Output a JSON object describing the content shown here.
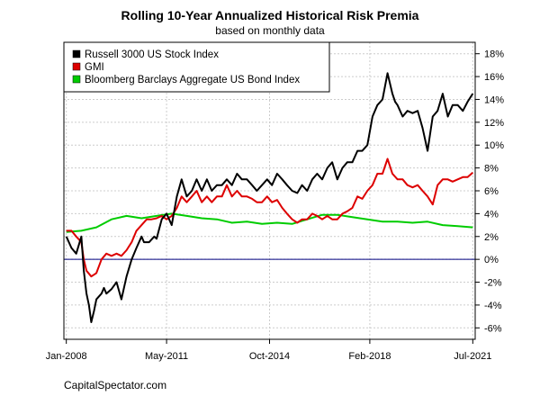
{
  "chart_data": {
    "type": "line",
    "title": "Rolling 10-Year Annualized Historical Risk Premia",
    "subtitle": "based on monthly data",
    "source": "CapitalSpectator.com",
    "xlabel": "",
    "ylabel": "",
    "x_ticks": [
      "Jan-2008",
      "May-2011",
      "Oct-2014",
      "Feb-2018",
      "Jul-2021"
    ],
    "y_ticks": [
      "-6%",
      "-4%",
      "-2%",
      "0%",
      "2%",
      "4%",
      "6%",
      "8%",
      "10%",
      "12%",
      "14%",
      "16%",
      "18%"
    ],
    "ylim": [
      -7,
      19
    ],
    "xlim": [
      2007.92,
      2021.58
    ],
    "grid": true,
    "legend_position": "top-left",
    "reference_line": 0,
    "series": [
      {
        "name": "Russell 3000 US Stock Index",
        "color": "#000000",
        "x": [
          2008.0,
          2008.17,
          2008.33,
          2008.5,
          2008.58,
          2008.67,
          2008.75,
          2008.83,
          2008.92,
          2009.0,
          2009.17,
          2009.25,
          2009.33,
          2009.5,
          2009.67,
          2009.83,
          2010.0,
          2010.17,
          2010.33,
          2010.5,
          2010.58,
          2010.75,
          2010.92,
          2011.0,
          2011.17,
          2011.33,
          2011.5,
          2011.67,
          2011.83,
          2012.0,
          2012.17,
          2012.33,
          2012.5,
          2012.67,
          2012.83,
          2013.0,
          2013.17,
          2013.33,
          2013.5,
          2013.67,
          2013.83,
          2014.0,
          2014.17,
          2014.33,
          2014.5,
          2014.67,
          2014.83,
          2015.0,
          2015.17,
          2015.33,
          2015.5,
          2015.67,
          2015.83,
          2016.0,
          2016.17,
          2016.33,
          2016.5,
          2016.67,
          2016.83,
          2017.0,
          2017.17,
          2017.33,
          2017.5,
          2017.67,
          2017.83,
          2018.0,
          2018.17,
          2018.33,
          2018.5,
          2018.67,
          2018.83,
          2018.92,
          2019.0,
          2019.17,
          2019.33,
          2019.5,
          2019.67,
          2019.83,
          2020.0,
          2020.17,
          2020.33,
          2020.5,
          2020.67,
          2020.83,
          2021.0,
          2021.17,
          2021.33,
          2021.5
        ],
        "values": [
          2.0,
          1.0,
          0.5,
          2.0,
          -1.0,
          -3.0,
          -4.0,
          -5.5,
          -4.5,
          -3.5,
          -3.0,
          -2.5,
          -3.0,
          -2.6,
          -2.0,
          -3.5,
          -1.5,
          0.0,
          1.0,
          2.0,
          1.5,
          1.5,
          2.0,
          1.8,
          3.5,
          4.0,
          3.0,
          5.5,
          7.0,
          5.5,
          6.0,
          7.0,
          6.0,
          7.0,
          6.0,
          6.5,
          6.5,
          7.0,
          6.5,
          7.5,
          7.0,
          7.0,
          6.5,
          6.0,
          6.5,
          7.0,
          6.5,
          7.5,
          7.0,
          6.5,
          6.0,
          5.8,
          6.5,
          6.0,
          7.0,
          7.5,
          7.0,
          8.0,
          8.5,
          7.0,
          8.0,
          8.5,
          8.5,
          9.5,
          9.5,
          10.0,
          12.5,
          13.5,
          14.0,
          16.3,
          14.5,
          13.8,
          13.5,
          12.5,
          13.0,
          12.8,
          13.0,
          11.5,
          9.5,
          12.5,
          13.0,
          14.5,
          12.5,
          13.5,
          13.5,
          13.0,
          13.8,
          14.5
        ]
      },
      {
        "name": "GMI",
        "color": "#dd0000",
        "x": [
          2008.0,
          2008.17,
          2008.33,
          2008.5,
          2008.58,
          2008.67,
          2008.83,
          2009.0,
          2009.17,
          2009.33,
          2009.5,
          2009.67,
          2009.83,
          2010.0,
          2010.17,
          2010.33,
          2010.5,
          2010.67,
          2010.83,
          2011.0,
          2011.17,
          2011.33,
          2011.5,
          2011.67,
          2011.83,
          2012.0,
          2012.17,
          2012.33,
          2012.5,
          2012.67,
          2012.83,
          2013.0,
          2013.17,
          2013.33,
          2013.5,
          2013.67,
          2013.83,
          2014.0,
          2014.17,
          2014.33,
          2014.5,
          2014.67,
          2014.83,
          2015.0,
          2015.17,
          2015.33,
          2015.5,
          2015.67,
          2015.83,
          2016.0,
          2016.17,
          2016.33,
          2016.5,
          2016.67,
          2016.83,
          2017.0,
          2017.17,
          2017.33,
          2017.5,
          2017.67,
          2017.83,
          2018.0,
          2018.17,
          2018.33,
          2018.5,
          2018.67,
          2018.83,
          2019.0,
          2019.17,
          2019.33,
          2019.5,
          2019.67,
          2019.83,
          2020.0,
          2020.17,
          2020.33,
          2020.5,
          2020.67,
          2020.83,
          2021.0,
          2021.17,
          2021.33,
          2021.5
        ],
        "values": [
          2.5,
          2.5,
          2.0,
          1.5,
          0.0,
          -1.0,
          -1.5,
          -1.2,
          0.0,
          0.5,
          0.3,
          0.5,
          0.3,
          0.8,
          1.5,
          2.5,
          3.0,
          3.5,
          3.5,
          3.6,
          3.8,
          3.5,
          3.8,
          4.5,
          5.5,
          5.0,
          5.5,
          6.0,
          5.0,
          5.5,
          5.0,
          5.5,
          5.5,
          6.5,
          5.5,
          6.0,
          5.5,
          5.5,
          5.3,
          5.0,
          5.0,
          5.5,
          5.0,
          5.2,
          4.5,
          4.0,
          3.5,
          3.2,
          3.5,
          3.5,
          4.0,
          3.8,
          3.5,
          3.8,
          3.5,
          3.5,
          4.0,
          4.2,
          4.5,
          5.5,
          5.3,
          6.0,
          6.5,
          7.5,
          7.5,
          8.8,
          7.5,
          7.0,
          7.0,
          6.5,
          6.3,
          6.5,
          6.0,
          5.5,
          4.8,
          6.5,
          7.0,
          7.0,
          6.8,
          7.0,
          7.2,
          7.2,
          7.6
        ]
      },
      {
        "name": "Bloomberg Barclays Aggregate US Bond Index",
        "color": "#00cc00",
        "x": [
          2008.0,
          2008.5,
          2009.0,
          2009.5,
          2010.0,
          2010.5,
          2011.0,
          2011.5,
          2012.0,
          2012.5,
          2013.0,
          2013.5,
          2014.0,
          2014.5,
          2015.0,
          2015.5,
          2016.0,
          2016.5,
          2017.0,
          2017.5,
          2018.0,
          2018.5,
          2019.0,
          2019.5,
          2020.0,
          2020.5,
          2021.0,
          2021.5
        ],
        "values": [
          2.4,
          2.5,
          2.8,
          3.5,
          3.8,
          3.6,
          3.8,
          4.0,
          3.8,
          3.6,
          3.5,
          3.2,
          3.3,
          3.1,
          3.2,
          3.1,
          3.5,
          3.9,
          3.9,
          3.7,
          3.5,
          3.3,
          3.3,
          3.2,
          3.3,
          3.0,
          2.9,
          2.8
        ]
      }
    ]
  }
}
